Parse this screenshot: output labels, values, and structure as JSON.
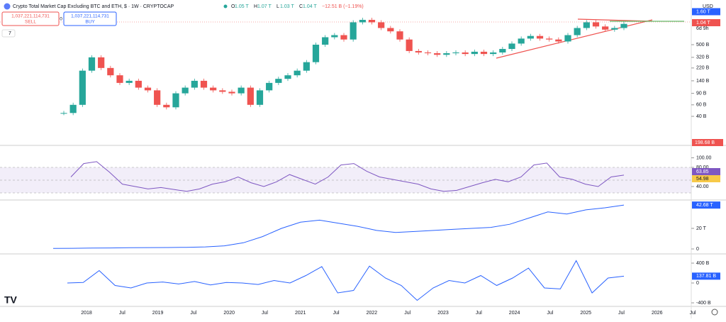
{
  "header": {
    "title": "Crypto Total Market Cap Excluding BTC and ETH, $ · 1W · CRYPTOCAP",
    "ohlc": [
      {
        "key": "O",
        "value": "1.05 T"
      },
      {
        "key": "H",
        "value": "1.07 T"
      },
      {
        "key": "L",
        "value": "1.03 T"
      },
      {
        "key": "C",
        "value": "1.04 T"
      }
    ],
    "change": "−12.51 B (−1.19%)"
  },
  "trade": {
    "sell_price": "1,037,221,114,731",
    "sell_label": "SELL",
    "spread": "0",
    "buy_price": "1,037,221,114,731",
    "buy_label": "BUY"
  },
  "indicators_count": "7",
  "currency": "USD",
  "price_pane": {
    "close": [
      45,
      60,
      200,
      320,
      220,
      170,
      130,
      140,
      110,
      100,
      60,
      55,
      90,
      110,
      140,
      110,
      100,
      95,
      90,
      110,
      60,
      100,
      130,
      150,
      170,
      200,
      270,
      500,
      650,
      700,
      600,
      1100,
      1200,
      1100,
      900,
      800,
      600,
      400,
      380,
      370,
      350,
      370,
      380,
      360,
      390,
      360,
      380,
      430,
      520,
      620,
      680,
      620,
      600,
      560,
      700,
      900,
      1100,
      950,
      850,
      900,
      1040
    ],
    "ticks": [
      {
        "value": 500,
        "label": "500 B"
      },
      {
        "value": 320,
        "label": "320 B"
      },
      {
        "value": 220,
        "label": "220 B"
      },
      {
        "value": 140,
        "label": "140 B"
      },
      {
        "value": 90,
        "label": "90 B"
      },
      {
        "value": 60,
        "label": "60 B"
      },
      {
        "value": 40,
        "label": "40 B"
      }
    ],
    "high_label": {
      "value": 1600,
      "label": "1.60 T"
    },
    "last_label": {
      "value": 1040,
      "label": "1.04 T"
    },
    "countdown": "6d 9h",
    "volume_label": "198.68 B"
  },
  "rsi_pane": {
    "values": [
      60,
      88,
      92,
      70,
      45,
      40,
      35,
      38,
      34,
      30,
      35,
      45,
      50,
      60,
      48,
      40,
      50,
      65,
      55,
      45,
      60,
      85,
      88,
      72,
      60,
      55,
      50,
      45,
      35,
      30,
      32,
      40,
      48,
      55,
      50,
      60,
      85,
      89,
      60,
      55,
      45,
      40,
      60,
      63.85
    ],
    "ticks": [
      {
        "value": 100,
        "label": "100.00"
      },
      {
        "value": 80,
        "label": "80.00"
      },
      {
        "value": 40,
        "label": "40.00"
      }
    ],
    "last_label": {
      "value": 63.85,
      "label": "63.85"
    },
    "ma_label": {
      "value": 54.98,
      "label": "54.98"
    }
  },
  "pane3": {
    "values": [
      0.5,
      0.6,
      0.8,
      1,
      1.2,
      1.3,
      1.4,
      1.6,
      2,
      3,
      6,
      12,
      20,
      26,
      28,
      25,
      22,
      18,
      16,
      17,
      18,
      19,
      20,
      21,
      24,
      30,
      36,
      34,
      38,
      40,
      42.68
    ],
    "ticks": [
      {
        "value": 20,
        "label": "20 T"
      },
      0
    ],
    "last_label": {
      "value": 42.68,
      "label": "42.68 T"
    }
  },
  "pane4": {
    "values": [
      0,
      10,
      250,
      -50,
      -100,
      0,
      20,
      -20,
      30,
      -40,
      10,
      0,
      -30,
      50,
      0,
      150,
      330,
      -200,
      -150,
      340,
      100,
      -50,
      -350,
      -100,
      50,
      0,
      150,
      -50,
      100,
      300,
      -100,
      -120,
      450,
      -200,
      100,
      137.81
    ],
    "ticks": [
      {
        "value": 400,
        "label": "400 B"
      },
      0,
      {
        "value": -400,
        "label": "-400 B"
      }
    ],
    "last_label": {
      "value": 137.81,
      "label": "137.81 B"
    }
  },
  "time_axis": [
    "2018",
    "Jul",
    "2019",
    "Jul",
    "2020",
    "Jul",
    "2021",
    "Jul",
    "2022",
    "Jul",
    "2023",
    "Jul",
    "2024",
    "Jul",
    "2025",
    "Jul",
    "2026",
    "Jul"
  ]
}
